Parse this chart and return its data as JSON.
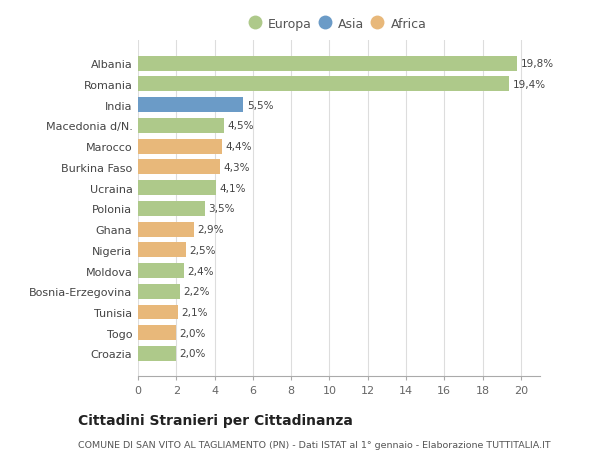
{
  "categories": [
    "Albania",
    "Romania",
    "India",
    "Macedonia d/N.",
    "Marocco",
    "Burkina Faso",
    "Ucraina",
    "Polonia",
    "Ghana",
    "Nigeria",
    "Moldova",
    "Bosnia-Erzegovina",
    "Tunisia",
    "Togo",
    "Croazia"
  ],
  "values": [
    19.8,
    19.4,
    5.5,
    4.5,
    4.4,
    4.3,
    4.1,
    3.5,
    2.9,
    2.5,
    2.4,
    2.2,
    2.1,
    2.0,
    2.0
  ],
  "labels": [
    "19,8%",
    "19,4%",
    "5,5%",
    "4,5%",
    "4,4%",
    "4,3%",
    "4,1%",
    "3,5%",
    "2,9%",
    "2,5%",
    "2,4%",
    "2,2%",
    "2,1%",
    "2,0%",
    "2,0%"
  ],
  "continent": [
    "Europa",
    "Europa",
    "Asia",
    "Europa",
    "Africa",
    "Africa",
    "Europa",
    "Europa",
    "Africa",
    "Africa",
    "Europa",
    "Europa",
    "Africa",
    "Africa",
    "Europa"
  ],
  "colors": {
    "Europa": "#aec98a",
    "Asia": "#6b9bc7",
    "Africa": "#e8b87a"
  },
  "legend_labels": [
    "Europa",
    "Asia",
    "Africa"
  ],
  "legend_colors": [
    "#aec98a",
    "#6b9bc7",
    "#e8b87a"
  ],
  "title": "Cittadini Stranieri per Cittadinanza",
  "subtitle": "COMUNE DI SAN VITO AL TAGLIAMENTO (PN) - Dati ISTAT al 1° gennaio - Elaborazione TUTTITALIA.IT",
  "xlim": [
    0,
    21
  ],
  "xticks": [
    0,
    2,
    4,
    6,
    8,
    10,
    12,
    14,
    16,
    18,
    20
  ],
  "background_color": "#ffffff",
  "plot_bg_color": "#ffffff",
  "grid_color": "#dddddd"
}
